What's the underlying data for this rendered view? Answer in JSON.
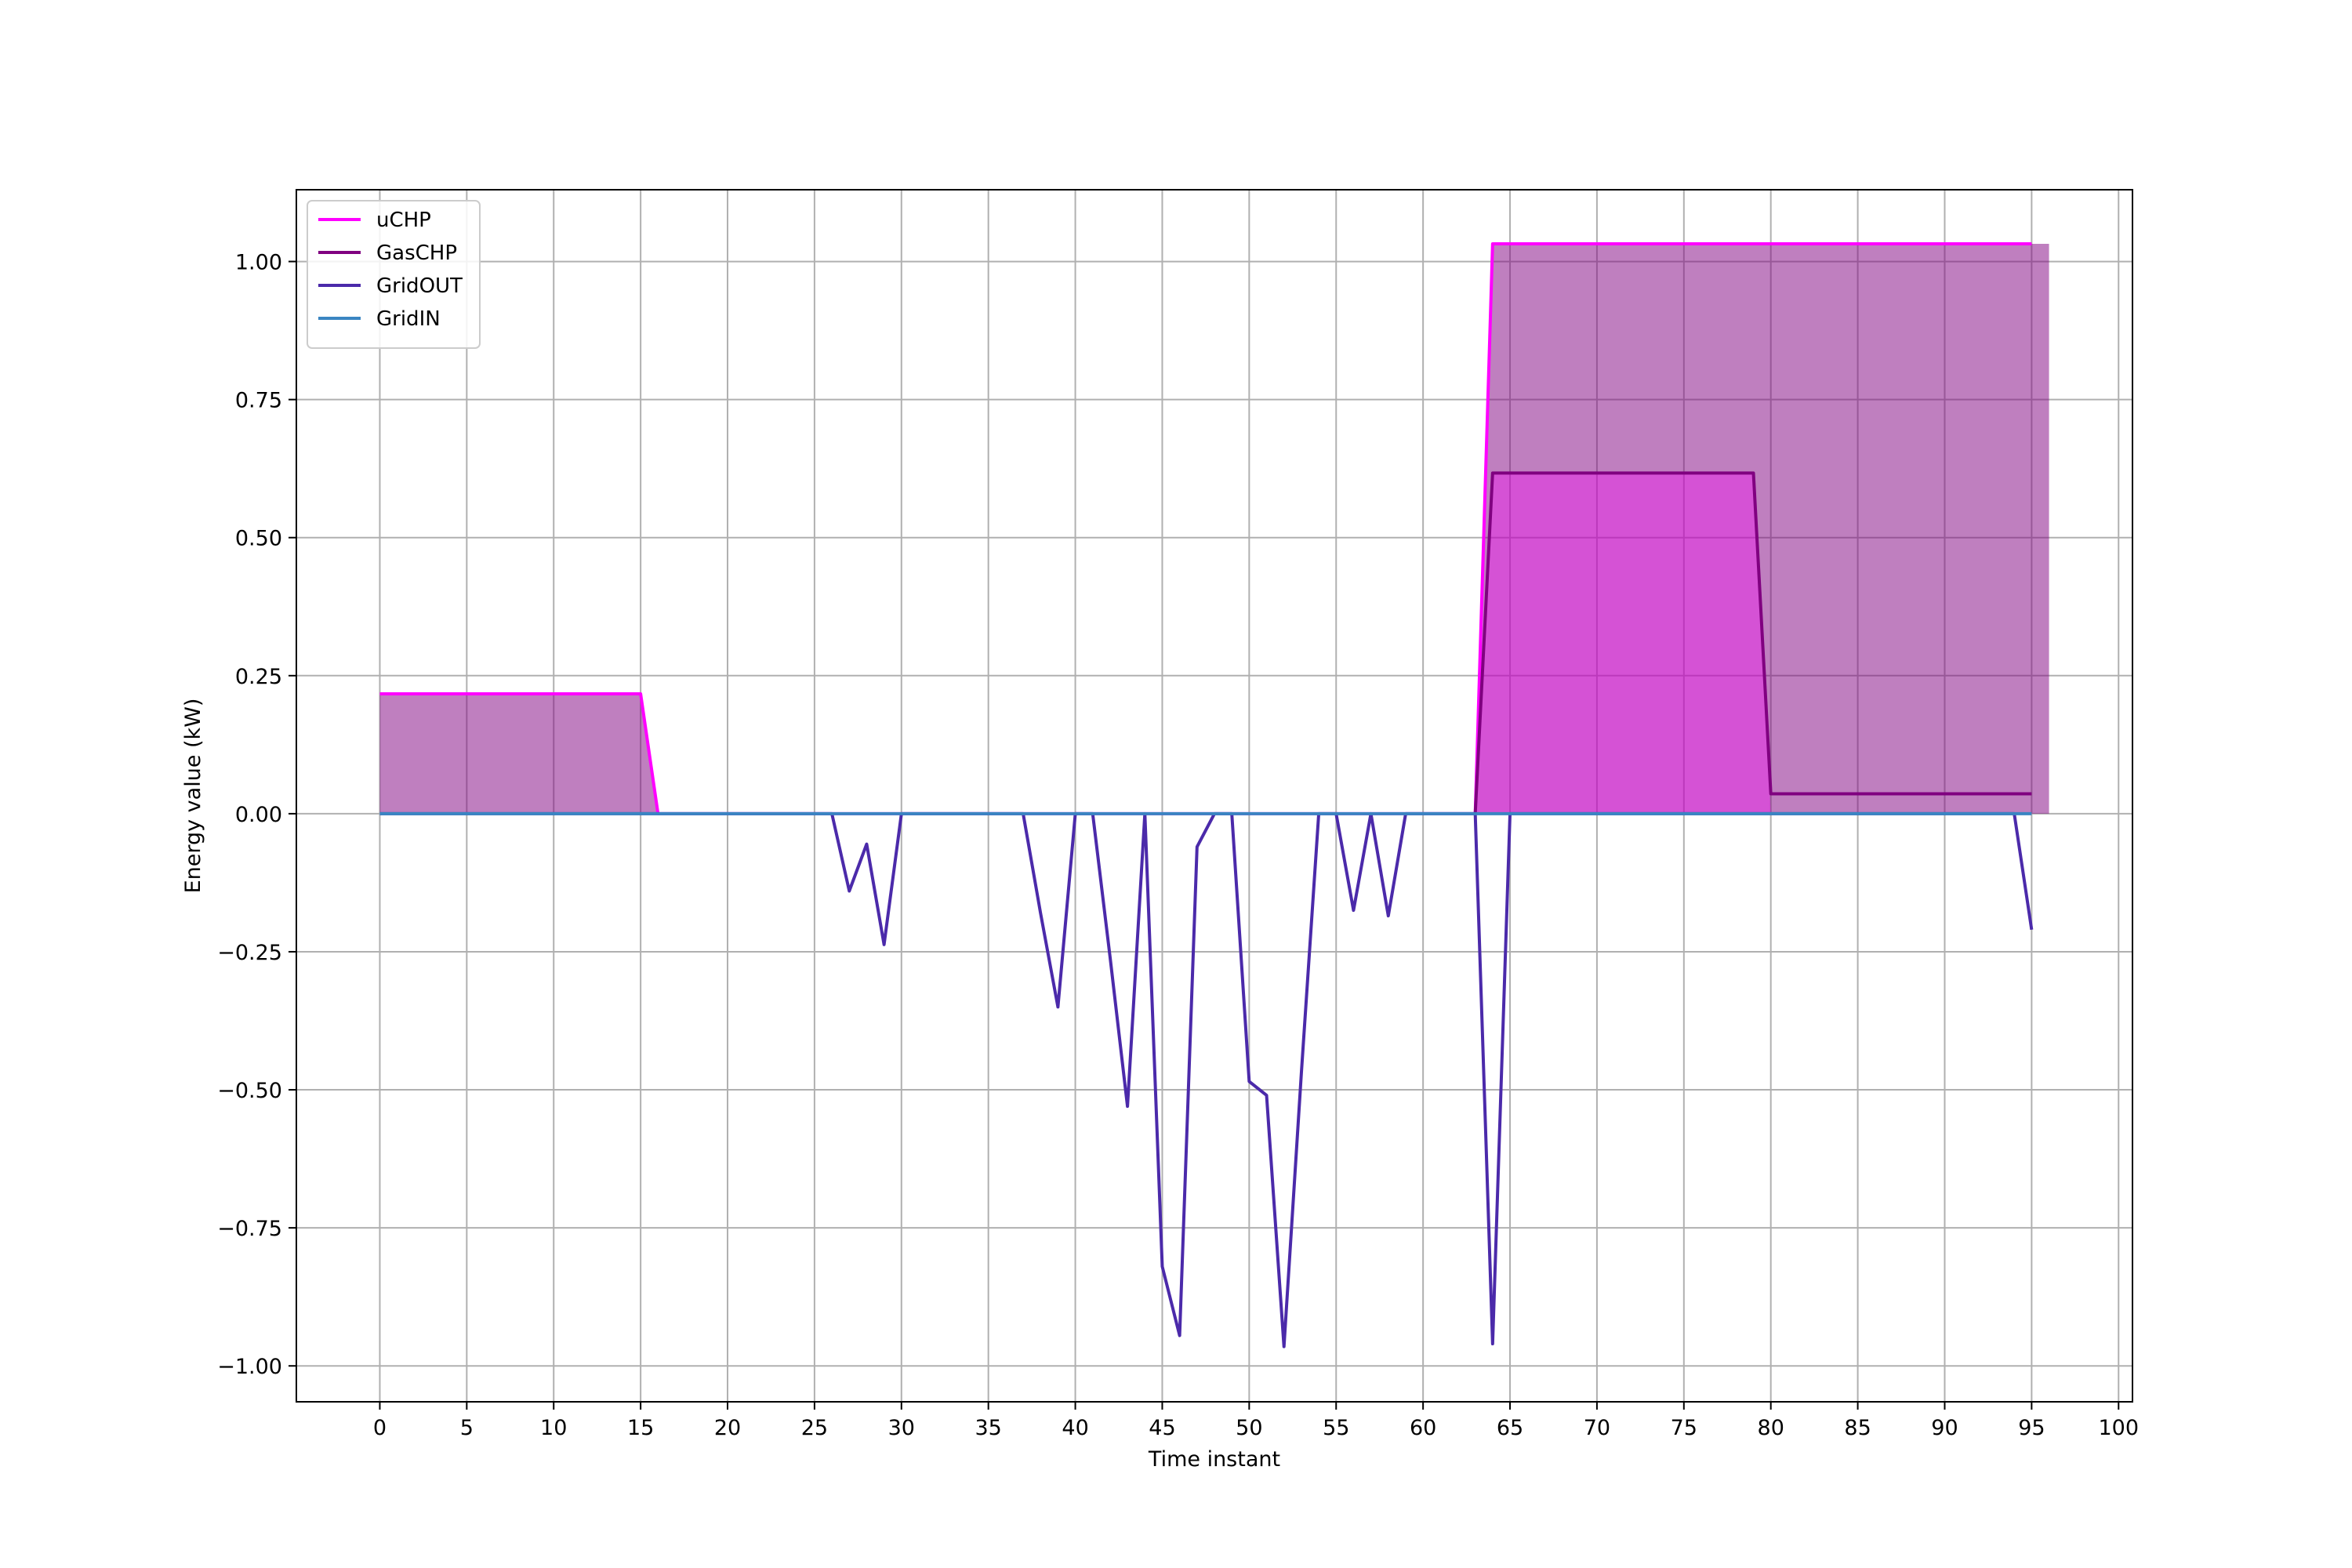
{
  "chart_data": {
    "type": "line",
    "xlabel": "Time instant",
    "ylabel": "Energy value (kW)",
    "xlim": [
      -4.8,
      100.8
    ],
    "ylim": [
      -1.065,
      1.13
    ],
    "x_ticks": [
      0,
      5,
      10,
      15,
      20,
      25,
      30,
      35,
      40,
      45,
      50,
      55,
      60,
      65,
      70,
      75,
      80,
      85,
      90,
      95,
      100
    ],
    "y_ticks": [
      -1.0,
      -0.75,
      -0.5,
      -0.25,
      0.0,
      0.25,
      0.5,
      0.75,
      1.0
    ],
    "y_tick_labels": [
      "−1.00",
      "−0.75",
      "−0.50",
      "−0.25",
      "0.00",
      "0.25",
      "0.50",
      "0.75",
      "1.00"
    ],
    "grid": true,
    "legend_position": "top-left",
    "series": [
      {
        "name": "uCHP",
        "color": "#ff00ff",
        "points": [
          [
            0,
            0.217
          ],
          [
            15,
            0.217
          ],
          [
            16,
            0.0
          ],
          [
            63,
            0.0
          ],
          [
            64,
            1.032
          ],
          [
            95,
            1.032
          ]
        ]
      },
      {
        "name": "GasCHP",
        "color": "#800080",
        "points": [
          [
            63,
            0.0
          ],
          [
            64,
            0.617
          ],
          [
            79,
            0.617
          ],
          [
            80,
            0.036
          ],
          [
            95,
            0.036
          ]
        ]
      },
      {
        "name": "GridOUT",
        "color": "#4b2aaa",
        "points": [
          [
            0,
            0.0
          ],
          [
            26,
            0.0
          ],
          [
            27,
            -0.14
          ],
          [
            28,
            -0.055
          ],
          [
            29,
            -0.237
          ],
          [
            30,
            0.0
          ],
          [
            37,
            0.0
          ],
          [
            38,
            -0.18
          ],
          [
            39,
            -0.35
          ],
          [
            40,
            0.0
          ],
          [
            41,
            0.0
          ],
          [
            42,
            -0.26
          ],
          [
            43,
            -0.53
          ],
          [
            44,
            0.0
          ],
          [
            45,
            -0.82
          ],
          [
            46,
            -0.945
          ],
          [
            47,
            -0.06
          ],
          [
            48,
            0.0
          ],
          [
            49,
            0.0
          ],
          [
            50,
            -0.485
          ],
          [
            51,
            -0.51
          ],
          [
            52,
            -0.965
          ],
          [
            53,
            -0.47
          ],
          [
            54,
            0.0
          ],
          [
            55,
            0.0
          ],
          [
            56,
            -0.175
          ],
          [
            57,
            0.0
          ],
          [
            58,
            -0.185
          ],
          [
            59,
            0.0
          ],
          [
            63,
            0.0
          ],
          [
            64,
            -0.96
          ],
          [
            65,
            0.0
          ],
          [
            94,
            0.0
          ],
          [
            95,
            -0.21
          ]
        ]
      },
      {
        "name": "GridIN",
        "color": "#3a85c2",
        "points": [
          [
            0,
            0.0
          ],
          [
            95,
            0.0
          ]
        ]
      }
    ],
    "fills": [
      {
        "color": "#800080",
        "opacity": 0.5,
        "points": [
          [
            0,
            0.217
          ],
          [
            15,
            0.217
          ],
          [
            16,
            0.0
          ]
        ]
      },
      {
        "color": "#800080",
        "opacity": 0.5,
        "points": [
          [
            63,
            0.0
          ],
          [
            64,
            1.032
          ],
          [
            96,
            1.032
          ],
          [
            96,
            0.0
          ]
        ]
      },
      {
        "color": "#ff00ff",
        "opacity": 0.35,
        "points": [
          [
            63,
            0.0
          ],
          [
            64,
            0.617
          ],
          [
            79,
            0.617
          ],
          [
            80,
            0.0
          ]
        ]
      }
    ]
  }
}
